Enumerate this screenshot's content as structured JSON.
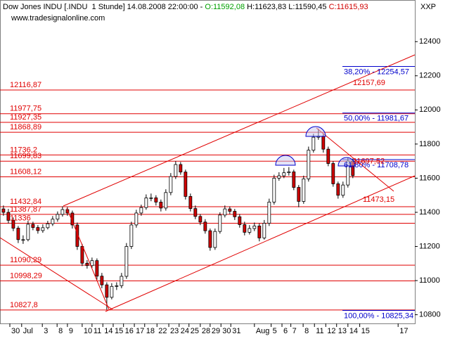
{
  "chart_data": {
    "type": "candlestick",
    "header": {
      "prefix": "Dow Jones INDU [.INDU  1 Stunde] 14.08.2008 22:00:00 - ",
      "open": "O:11592,08",
      "high": "H:11623,83",
      "low": "L:11590,45",
      "close": "C:11615,93"
    },
    "symbol": "XXP",
    "watermark": "www.tradesignalonline.com",
    "ylim": [
      10749,
      12644
    ],
    "yticks": [
      10800,
      11000,
      11200,
      11400,
      11600,
      11800,
      12000,
      12200,
      12400
    ],
    "xlim": [
      -0.7,
      83.6
    ],
    "xticks": [
      {
        "value": 1.3,
        "label": "30"
      },
      {
        "value": 3.7,
        "label": "Jul"
      },
      {
        "value": 7.9,
        "label": "3"
      },
      {
        "value": 10.9,
        "label": "8"
      },
      {
        "value": 13,
        "label": "9"
      },
      {
        "value": 16,
        "label": "10"
      },
      {
        "value": 18,
        "label": "11"
      },
      {
        "value": 20.2,
        "label": "14"
      },
      {
        "value": 22.3,
        "label": "15"
      },
      {
        "value": 24.4,
        "label": "16"
      },
      {
        "value": 26.6,
        "label": "17"
      },
      {
        "value": 28.7,
        "label": "18"
      },
      {
        "value": 31.2,
        "label": "22"
      },
      {
        "value": 33.6,
        "label": "23"
      },
      {
        "value": 35.7,
        "label": "24"
      },
      {
        "value": 37.7,
        "label": "25"
      },
      {
        "value": 40,
        "label": "28"
      },
      {
        "value": 42,
        "label": "29"
      },
      {
        "value": 44.2,
        "label": "30"
      },
      {
        "value": 46.2,
        "label": "31"
      },
      {
        "value": 51,
        "label": "Aug"
      },
      {
        "value": 54.4,
        "label": "5"
      },
      {
        "value": 56.6,
        "label": "6"
      },
      {
        "value": 58.4,
        "label": "7"
      },
      {
        "value": 60.9,
        "label": "8"
      },
      {
        "value": 63.2,
        "label": "11"
      },
      {
        "value": 65.5,
        "label": "12"
      },
      {
        "value": 67.7,
        "label": "13"
      },
      {
        "value": 70,
        "label": "14"
      },
      {
        "value": 72.4,
        "label": "15"
      },
      {
        "value": 80.2,
        "label": "17"
      }
    ],
    "up_color": "#ffffff",
    "down_color": "#d00000",
    "level_color": "#e00000",
    "fib_color": "#0000cc",
    "open": [
      11420,
      11400,
      11353,
      11307,
      11240,
      11240,
      11330,
      11311,
      11293,
      11310,
      11333,
      11360,
      11388,
      11416,
      11396,
      11326,
      11200,
      11102,
      11088,
      11117,
      11026,
      10975,
      10902,
      10966,
      10970,
      11025,
      11200,
      11326,
      11396,
      11428,
      11484,
      11485,
      11460,
      11425,
      11516,
      11610,
      11680,
      11636,
      11493,
      11422,
      11376,
      11343,
      11292,
      11194,
      11288,
      11384,
      11420,
      11406,
      11374,
      11328,
      11283,
      11305,
      11320,
      11250,
      11336,
      11460,
      11600,
      11614,
      11632,
      11637,
      11546,
      11464,
      11596,
      11764,
      11840,
      11846,
      11770,
      11686,
      11567,
      11500,
      11560,
      11700
    ],
    "high": [
      11440,
      11420,
      11370,
      11320,
      11265,
      11350,
      11345,
      11325,
      11330,
      11350,
      11378,
      11405,
      11435,
      11430,
      11410,
      11340,
      11215,
      11120,
      11135,
      11130,
      11045,
      10990,
      10985,
      10990,
      11045,
      11220,
      11345,
      11415,
      11445,
      11505,
      11510,
      11500,
      11475,
      11535,
      11630,
      11700,
      11695,
      11650,
      11510,
      11440,
      11390,
      11360,
      11305,
      11305,
      11400,
      11440,
      11435,
      11420,
      11390,
      11345,
      11325,
      11340,
      11335,
      11355,
      11480,
      11620,
      11635,
      11660,
      11665,
      11650,
      11560,
      11615,
      11785,
      11860,
      11890,
      11860,
      11785,
      11700,
      11580,
      11580,
      11720,
      11715
    ],
    "low": [
      11380,
      11335,
      11290,
      11220,
      11215,
      11230,
      11295,
      11275,
      11280,
      11300,
      11320,
      11345,
      11375,
      11380,
      11305,
      11180,
      11085,
      11070,
      11075,
      11005,
      10955,
      10830,
      10890,
      10945,
      10955,
      11010,
      11185,
      11310,
      11380,
      11415,
      11465,
      11440,
      11405,
      11410,
      11500,
      11595,
      11620,
      11475,
      11405,
      11360,
      11325,
      11275,
      11175,
      11180,
      11275,
      11370,
      11390,
      11355,
      11310,
      11265,
      11270,
      11290,
      11230,
      11240,
      11320,
      11445,
      11585,
      11600,
      11615,
      11530,
      11430,
      11450,
      11580,
      11750,
      11825,
      11750,
      11670,
      11550,
      11480,
      11485,
      11545,
      11600
    ],
    "close": [
      11400,
      11353,
      11307,
      11240,
      11240,
      11330,
      11311,
      11293,
      11310,
      11333,
      11360,
      11388,
      11416,
      11396,
      11326,
      11200,
      11102,
      11088,
      11117,
      11026,
      10975,
      10902,
      10966,
      10970,
      11025,
      11200,
      11326,
      11396,
      11428,
      11484,
      11485,
      11460,
      11425,
      11516,
      11610,
      11680,
      11636,
      11493,
      11422,
      11376,
      11343,
      11292,
      11194,
      11288,
      11384,
      11420,
      11406,
      11374,
      11328,
      11283,
      11305,
      11320,
      11250,
      11336,
      11460,
      11600,
      11614,
      11632,
      11637,
      11546,
      11464,
      11596,
      11764,
      11840,
      11846,
      11770,
      11686,
      11567,
      11500,
      11560,
      11700,
      11615
    ],
    "levels": [
      {
        "value": 12116.87,
        "label": "12116,87"
      },
      {
        "value": 11977.75,
        "label": "11977,75"
      },
      {
        "value": 11927.35,
        "label": "11927,35"
      },
      {
        "value": 11868.89,
        "label": "11868,89"
      },
      {
        "value": 11736.2,
        "label": "11736,2"
      },
      {
        "value": 11699.83,
        "label": "11699,83"
      },
      {
        "value": 11608.12,
        "label": "11608,12"
      },
      {
        "value": 11432.84,
        "label": "11432,84"
      },
      {
        "value": 11387.87,
        "label": "11387,87"
      },
      {
        "value": 11336,
        "label": "11336"
      },
      {
        "value": 11090.29,
        "label": "11090,29"
      },
      {
        "value": 10998.29,
        "label": "10998,29"
      },
      {
        "value": 10827.8,
        "label": "10827,8"
      }
    ],
    "fib_levels": [
      {
        "value": 12254.57,
        "label": "38,20% - 12254,57"
      },
      {
        "value": 11981.67,
        "label": "50,00% - 11981,67"
      },
      {
        "value": 11708.78,
        "label": "61,80% - 11708,78"
      },
      {
        "value": 10825.34,
        "label": "100,00% - 10825,34"
      }
    ],
    "annotations": [
      {
        "value": 12157.69,
        "label": "12157,69"
      },
      {
        "value": 11697.52,
        "label": "11697,52"
      },
      {
        "value": 11473.15,
        "label": "11473,15"
      }
    ]
  }
}
